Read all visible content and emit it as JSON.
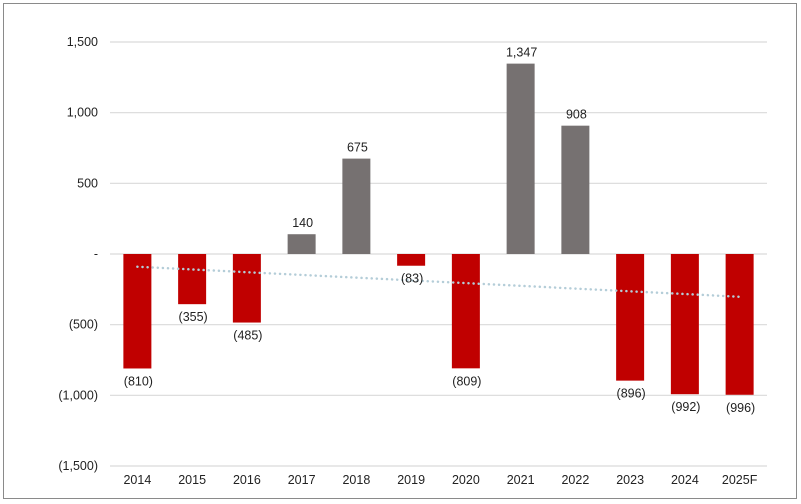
{
  "chart_data": {
    "type": "bar",
    "title": "",
    "xlabel": "",
    "ylabel": "",
    "categories": [
      "2014",
      "2015",
      "2016",
      "2017",
      "2018",
      "2019",
      "2020",
      "2021",
      "2022",
      "2023",
      "2024",
      "2025F"
    ],
    "values": [
      -810,
      -355,
      -485,
      140,
      675,
      -83,
      -809,
      1347,
      908,
      -896,
      -992,
      -996
    ],
    "data_labels": [
      "(810)",
      "(355)",
      "(485)",
      "140",
      "675",
      "(83)",
      "(809)",
      "1,347",
      "908",
      "(896)",
      "(992)",
      "(996)"
    ],
    "ylim": [
      -1500,
      1500
    ],
    "yticks": [
      1500,
      1000,
      500,
      0,
      -500,
      -1000,
      -1500
    ],
    "ytick_labels": [
      "1,500",
      "1,000",
      "500",
      "-",
      "(500)",
      "(1,000)",
      "(1,500)"
    ],
    "grid": "horizontal",
    "legend": "none",
    "trendline": "linear",
    "colors": {
      "positive": "#767171",
      "negative": "#C00000",
      "trendline": "#B4CDD8",
      "grid": "#D9D9D9",
      "frame": "#8A8A8A"
    }
  }
}
